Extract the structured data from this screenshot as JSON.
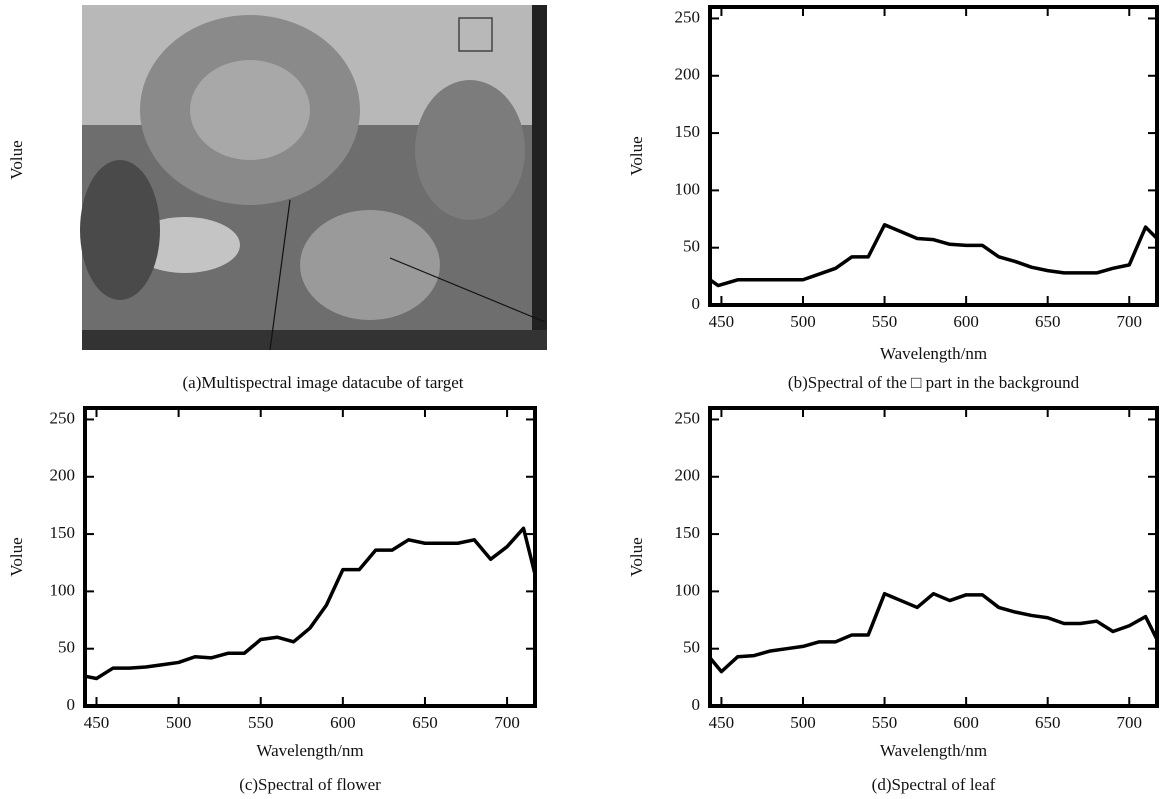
{
  "image_panel": {
    "ylabel": "Volue",
    "caption": "(a)Multispectral image datacube of target"
  },
  "chart_data": [
    {
      "type": "line",
      "caption": "(b)Spectral of the □ part in the background",
      "xlabel": "Wavelength/nm",
      "ylabel": "Volue",
      "x": [
        443,
        448,
        460,
        470,
        480,
        490,
        500,
        510,
        520,
        530,
        540,
        550,
        560,
        570,
        580,
        590,
        600,
        610,
        620,
        630,
        640,
        650,
        660,
        670,
        680,
        690,
        700,
        710,
        717
      ],
      "series": [
        {
          "color": "#000000",
          "values": [
            22,
            17,
            22,
            22,
            22,
            22,
            22,
            27,
            32,
            42,
            42,
            70,
            64,
            58,
            57,
            53,
            52,
            52,
            42,
            38,
            33,
            30,
            28,
            28,
            28,
            32,
            35,
            68,
            58
          ]
        }
      ],
      "xlim": [
        443,
        717
      ],
      "ylim": [
        0,
        260
      ],
      "xticks": [
        450,
        500,
        550,
        600,
        650,
        700
      ],
      "yticks": [
        0,
        50,
        100,
        150,
        200,
        250
      ]
    },
    {
      "type": "line",
      "caption": "(c)Spectral of flower",
      "xlabel": "Wavelength/nm",
      "ylabel": "Volue",
      "x": [
        443,
        450,
        460,
        470,
        480,
        490,
        500,
        510,
        520,
        530,
        540,
        550,
        560,
        570,
        580,
        590,
        600,
        610,
        620,
        630,
        640,
        650,
        660,
        670,
        680,
        690,
        700,
        710,
        717
      ],
      "series": [
        {
          "color": "#000000",
          "values": [
            26,
            24,
            33,
            33,
            34,
            36,
            38,
            43,
            42,
            46,
            46,
            58,
            60,
            56,
            68,
            88,
            119,
            119,
            136,
            136,
            145,
            142,
            142,
            142,
            145,
            128,
            139,
            155,
            115
          ]
        }
      ],
      "xlim": [
        443,
        717
      ],
      "ylim": [
        0,
        260
      ],
      "xticks": [
        450,
        500,
        550,
        600,
        650,
        700
      ],
      "yticks": [
        0,
        50,
        100,
        150,
        200,
        250
      ]
    },
    {
      "type": "line",
      "caption": "(d)Spectral of leaf",
      "xlabel": "Wavelength/nm",
      "ylabel": "Volue",
      "x": [
        443,
        450,
        460,
        470,
        480,
        490,
        500,
        510,
        520,
        530,
        540,
        550,
        560,
        570,
        580,
        590,
        600,
        610,
        620,
        630,
        640,
        650,
        660,
        670,
        680,
        690,
        700,
        710,
        717
      ],
      "series": [
        {
          "color": "#000000",
          "values": [
            42,
            30,
            43,
            44,
            48,
            50,
            52,
            56,
            56,
            62,
            62,
            98,
            92,
            86,
            98,
            92,
            97,
            97,
            86,
            82,
            79,
            77,
            72,
            72,
            74,
            65,
            70,
            78,
            58
          ]
        }
      ],
      "xlim": [
        443,
        717
      ],
      "ylim": [
        0,
        260
      ],
      "xticks": [
        450,
        500,
        550,
        600,
        650,
        700
      ],
      "yticks": [
        0,
        50,
        100,
        150,
        200,
        250
      ]
    }
  ]
}
